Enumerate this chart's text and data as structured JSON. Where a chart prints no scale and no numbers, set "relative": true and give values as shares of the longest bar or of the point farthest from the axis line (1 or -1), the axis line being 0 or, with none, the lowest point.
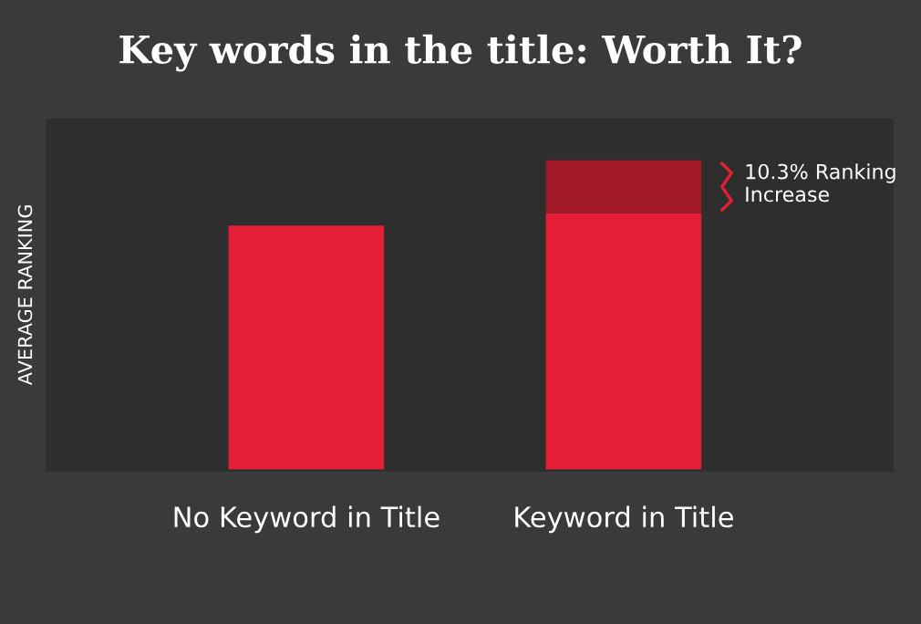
{
  "chart_data": {
    "type": "bar",
    "title": "Key words in the title: Worth It?",
    "ylabel": "AVERAGE RANKING",
    "categories": [
      "No Keyword in Title",
      "Keyword in Title"
    ],
    "stacked": true,
    "relative": true,
    "series": [
      {
        "color": "#e41f35",
        "values": [
          0.79,
          0.83
        ]
      },
      {
        "color": "#a11826",
        "values": [
          null,
          0.17
        ]
      }
    ],
    "annotations": [
      "10.3% Ranking\nIncrease"
    ]
  }
}
